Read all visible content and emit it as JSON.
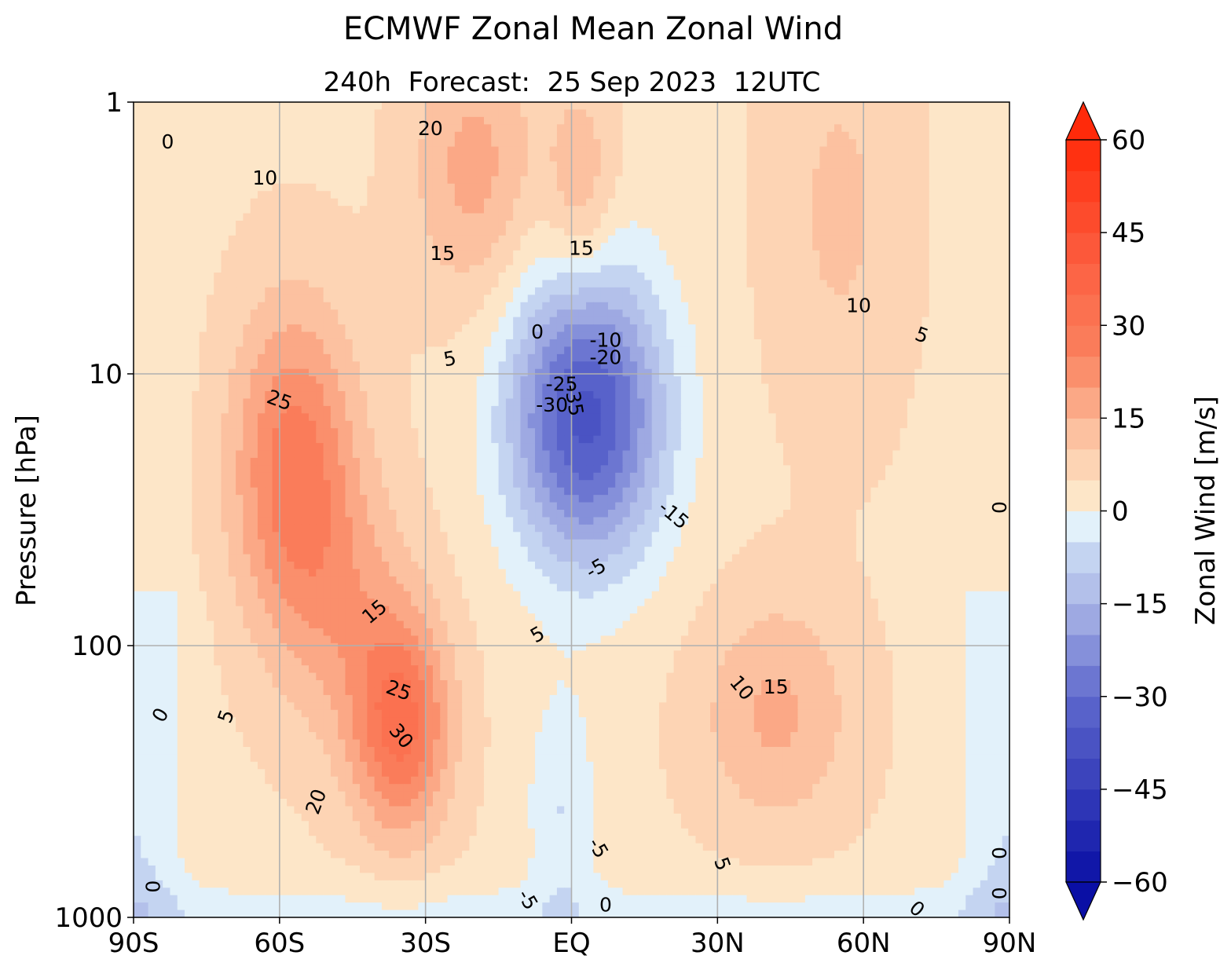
{
  "chart_data": {
    "type": "contour",
    "title": "ECMWF Zonal Mean Zonal Wind",
    "subtitle": "240h  Forecast:  25 Sep 2023  12UTC",
    "xlabel": "",
    "ylabel": "Pressure [hPa]",
    "x_axis": {
      "range": [
        -90,
        90
      ],
      "ticks": [
        -90,
        -60,
        -30,
        0,
        30,
        60,
        90
      ],
      "tick_labels": [
        "90S",
        "60S",
        "30S",
        "EQ",
        "30N",
        "60N",
        "90N"
      ]
    },
    "y_axis": {
      "scale": "log",
      "inverted": true,
      "range": [
        1000,
        1
      ],
      "ticks": [
        1,
        10,
        100,
        1000
      ],
      "tick_labels": [
        "1",
        "10",
        "100",
        "1000"
      ]
    },
    "grid": true,
    "colorbar": {
      "label": "Zonal Wind [m/s]",
      "range": [
        -60,
        60
      ],
      "step": 5,
      "extend": "both",
      "ticks": [
        60,
        45,
        30,
        15,
        0,
        -15,
        -30,
        -45,
        -60
      ],
      "tick_labels": [
        "60",
        "45",
        "30",
        "15",
        "0",
        "−15",
        "−30",
        "−45",
        "−60"
      ],
      "colors": {
        "neg_extreme": "#0a0fa5",
        "neg_light": "#e2f1fa",
        "pos_light": "#fde6c8",
        "pos_extreme": "#ff2a0a"
      }
    },
    "features": [
      {
        "name": "southern-stratospheric-jet",
        "lat": -55,
        "pressure": 25,
        "max": 25
      },
      {
        "name": "southern-tropospheric-jet",
        "lat": -33,
        "pressure": 200,
        "max": 30
      },
      {
        "name": "equatorial-easterlies",
        "lat": 3,
        "pressure": 12,
        "min": -35
      },
      {
        "name": "northern-jet",
        "lat": 42,
        "pressure": 200,
        "max": 15
      },
      {
        "name": "northern-stratospheric-westerlies",
        "lat": 55,
        "pressure": 2,
        "max": 10
      }
    ],
    "contour_labels": [
      {
        "text": "0",
        "lat": -83,
        "p": 1.4,
        "rot": 0
      },
      {
        "text": "10",
        "lat": -63,
        "p": 1.9,
        "rot": 0
      },
      {
        "text": "20",
        "lat": -29,
        "p": 1.25,
        "rot": 0
      },
      {
        "text": "15",
        "lat": -26.5,
        "p": 3.6,
        "rot": 0
      },
      {
        "text": "15",
        "lat": 2,
        "p": 3.45,
        "rot": 0
      },
      {
        "text": "10",
        "lat": 59,
        "p": 5.6,
        "rot": 0
      },
      {
        "text": "5",
        "lat": 72,
        "p": 7.2,
        "rot": 20
      },
      {
        "text": "0",
        "lat": -7,
        "p": 7.0,
        "rot": 0
      },
      {
        "text": "-10",
        "lat": 7,
        "p": 7.5,
        "rot": 0
      },
      {
        "text": "-20",
        "lat": 7,
        "p": 8.7,
        "rot": 0
      },
      {
        "text": "5",
        "lat": -25,
        "p": 8.8,
        "rot": -10
      },
      {
        "text": "-25",
        "lat": -2,
        "p": 10.9,
        "rot": 0
      },
      {
        "text": "-30",
        "lat": -4,
        "p": 13.0,
        "rot": 0
      },
      {
        "text": "-35",
        "lat": 0.5,
        "p": 12.5,
        "rot": 80
      },
      {
        "text": "25",
        "lat": -60,
        "p": 12.5,
        "rot": 20
      },
      {
        "text": "-15",
        "lat": 21,
        "p": 33.0,
        "rot": 40
      },
      {
        "text": "-5",
        "lat": 5,
        "p": 52.0,
        "rot": -30
      },
      {
        "text": "15",
        "lat": -40.5,
        "p": 75.0,
        "rot": -40
      },
      {
        "text": "5",
        "lat": -7,
        "p": 91.0,
        "rot": -30
      },
      {
        "text": "25",
        "lat": -35.5,
        "p": 146.0,
        "rot": 20
      },
      {
        "text": "10",
        "lat": 35,
        "p": 143.0,
        "rot": 50
      },
      {
        "text": "15",
        "lat": 42,
        "p": 142.0,
        "rot": 0
      },
      {
        "text": "0",
        "lat": -84.5,
        "p": 180.0,
        "rot": -60
      },
      {
        "text": "5",
        "lat": -71,
        "p": 182.0,
        "rot": -70
      },
      {
        "text": "30",
        "lat": -35,
        "p": 215.0,
        "rot": 50
      },
      {
        "text": "20",
        "lat": -52.5,
        "p": 375.0,
        "rot": -70
      },
      {
        "text": "-5",
        "lat": 5.5,
        "p": 555.0,
        "rot": 60
      },
      {
        "text": "5",
        "lat": 31,
        "p": 635.0,
        "rot": 70
      },
      {
        "text": "0",
        "lat": -86,
        "p": 770.0,
        "rot": -90
      },
      {
        "text": "-5",
        "lat": -9,
        "p": 860.0,
        "rot": 60
      },
      {
        "text": "0",
        "lat": 7,
        "p": 900.0,
        "rot": 0
      },
      {
        "text": "0",
        "lat": 88,
        "p": 31.0,
        "rot": -90
      },
      {
        "text": "0",
        "lat": 88,
        "p": 580.0,
        "rot": -90
      },
      {
        "text": "0",
        "lat": 88,
        "p": 815.0,
        "rot": -90
      },
      {
        "text": "0",
        "lat": 71,
        "p": 930.0,
        "rot": 40
      }
    ]
  }
}
